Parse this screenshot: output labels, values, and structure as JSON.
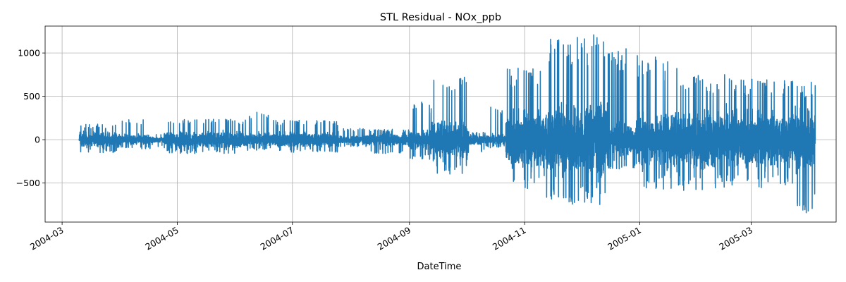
{
  "chart_data": {
    "type": "line",
    "title": "STL Residual - NOx_ppb",
    "xlabel": "DateTime",
    "ylabel": "",
    "x_type": "date",
    "xlim": [
      "2004-02-21",
      "2005-04-15"
    ],
    "ylim": [
      -950,
      1310
    ],
    "x_ticks": [
      "2004-03-01",
      "2004-05-01",
      "2004-07-01",
      "2004-09-01",
      "2004-11-01",
      "2005-01-01",
      "2005-03-01"
    ],
    "x_tick_labels": [
      "2004-03",
      "2004-05",
      "2004-07",
      "2004-09",
      "2004-11",
      "2005-01",
      "2005-03"
    ],
    "y_ticks": [
      -500,
      0,
      500,
      1000
    ],
    "y_tick_labels": [
      "−500",
      "0",
      "500",
      "1000"
    ],
    "grid": true,
    "line_color": "#1f77b4",
    "series": [
      {
        "color": "#1f77b4",
        "x_start": "2004-03-10",
        "x_end": "2005-04-04",
        "segments": [
          {
            "start": "2004-03-10",
            "end": "2004-04-01",
            "low": -150,
            "high": 180
          },
          {
            "start": "2004-04-01",
            "end": "2004-04-17",
            "low": -110,
            "high": 230
          },
          {
            "start": "2004-04-17",
            "end": "2004-04-24",
            "low": -80,
            "high": 60
          },
          {
            "start": "2004-04-24",
            "end": "2004-06-05",
            "low": -160,
            "high": 240
          },
          {
            "start": "2004-06-05",
            "end": "2004-06-20",
            "low": -130,
            "high": 320
          },
          {
            "start": "2004-06-20",
            "end": "2004-07-25",
            "low": -150,
            "high": 230
          },
          {
            "start": "2004-07-25",
            "end": "2004-08-10",
            "low": -80,
            "high": 130
          },
          {
            "start": "2004-08-10",
            "end": "2004-09-01",
            "low": -160,
            "high": 120
          },
          {
            "start": "2004-09-01",
            "end": "2004-09-13",
            "low": -230,
            "high": 440
          },
          {
            "start": "2004-09-13",
            "end": "2004-10-02",
            "low": -400,
            "high": 740
          },
          {
            "start": "2004-10-02",
            "end": "2004-10-12",
            "low": -150,
            "high": 100
          },
          {
            "start": "2004-10-12",
            "end": "2004-10-22",
            "low": -100,
            "high": 380
          },
          {
            "start": "2004-10-22",
            "end": "2004-11-12",
            "low": -580,
            "high": 840
          },
          {
            "start": "2004-11-12",
            "end": "2004-12-15",
            "low": -750,
            "high": 1210
          },
          {
            "start": "2004-12-15",
            "end": "2004-12-31",
            "low": -340,
            "high": 1050
          },
          {
            "start": "2004-12-31",
            "end": "2005-01-21",
            "low": -580,
            "high": 970
          },
          {
            "start": "2005-01-21",
            "end": "2005-02-20",
            "low": -590,
            "high": 760
          },
          {
            "start": "2005-02-20",
            "end": "2005-03-24",
            "low": -570,
            "high": 710
          },
          {
            "start": "2005-03-24",
            "end": "2005-04-04",
            "low": -850,
            "high": 680
          }
        ]
      }
    ]
  }
}
